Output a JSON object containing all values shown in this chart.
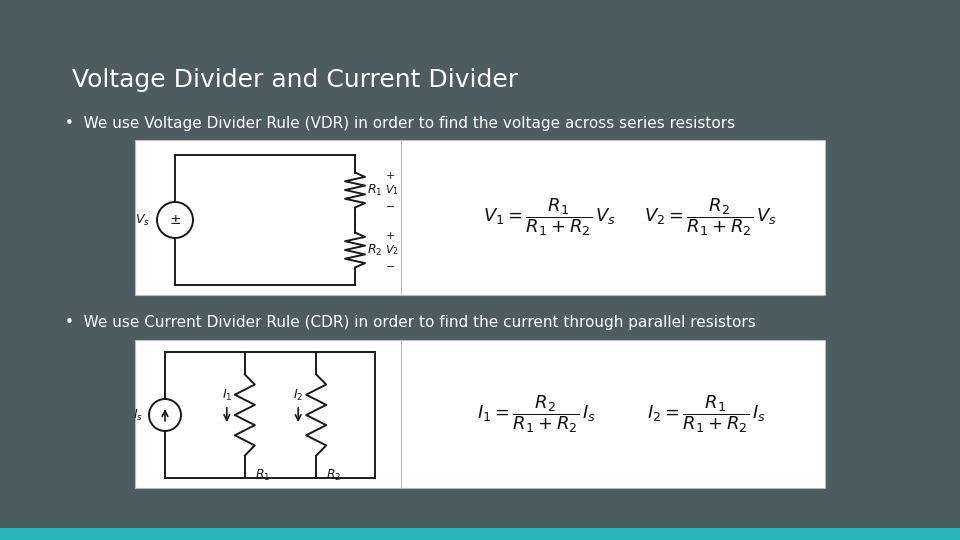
{
  "bg_color": "#4d5d5f",
  "title": "Voltage Divider and Current Divider",
  "title_color": "#ffffff",
  "title_fontsize": 18,
  "title_bold": false,
  "bullet1": "We use Voltage Divider Rule (VDR) in order to find the voltage across series resistors",
  "bullet2": "We use Current Divider Rule (CDR) in order to find the current through parallel resistors",
  "bullet_color": "#ffffff",
  "bullet_fontsize": 11,
  "formula_color": "#111111",
  "teal_bar_color": "#29b6b8",
  "teal_bar_height": 0.022,
  "vdr_formula1": "$V_1 = \\dfrac{R_1}{R_1 + R_2}\\,V_s$",
  "vdr_formula2": "$V_2 = \\dfrac{R_2}{R_1 + R_2}\\,V_s$",
  "cdr_formula1": "$I_1 = \\dfrac{R_2}{R_1 + R_2}\\,I_s$",
  "cdr_formula2": "$I_2 = \\dfrac{R_1}{R_1 + R_2}\\,I_s$"
}
